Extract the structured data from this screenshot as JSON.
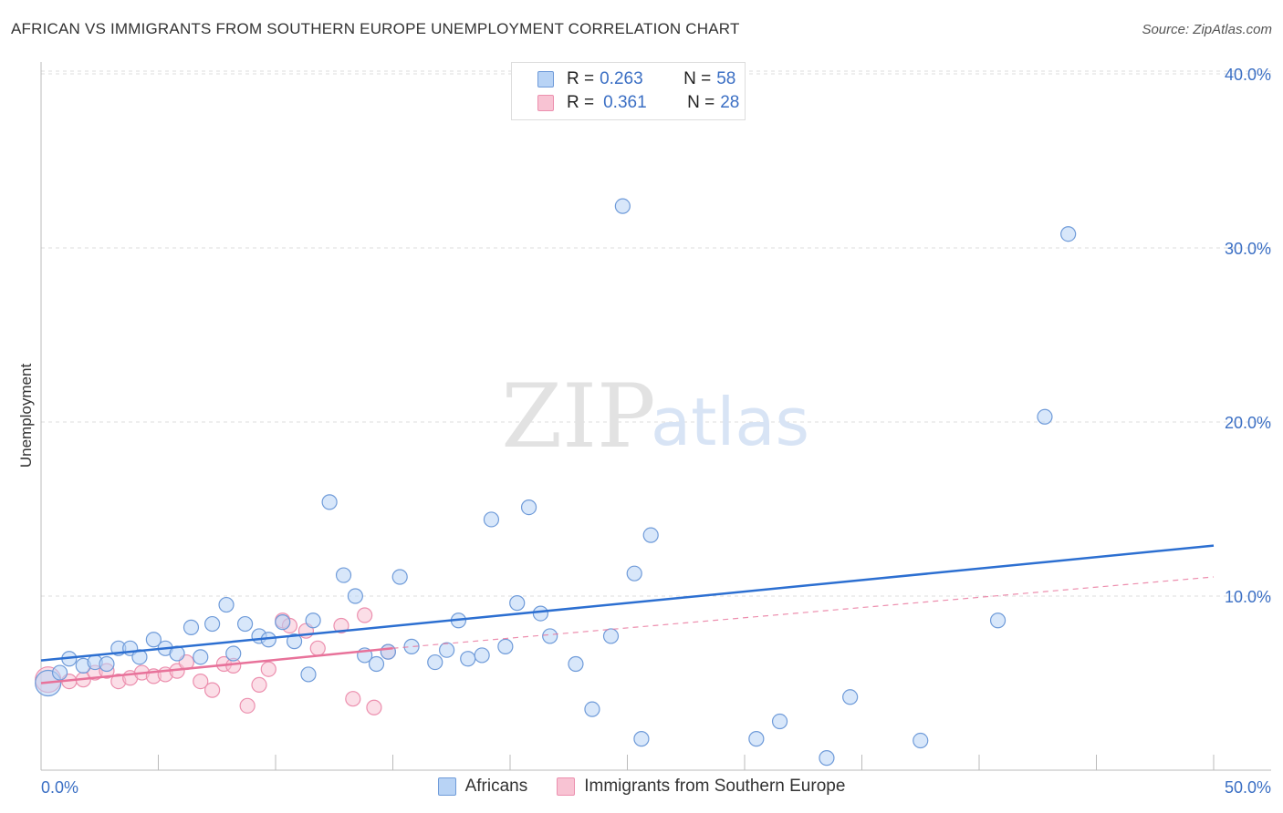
{
  "title": "AFRICAN VS IMMIGRANTS FROM SOUTHERN EUROPE UNEMPLOYMENT CORRELATION CHART",
  "source": "Source: ZipAtlas.com",
  "colors": {
    "blue_fill": "#b8d3f5",
    "blue_stroke": "#6f9bd9",
    "blue_line": "#2c6fd1",
    "pink_fill": "#f8c3d3",
    "pink_stroke": "#ec8fae",
    "pink_line": "#e8729a",
    "grid": "#dddddd",
    "tick_label": "#3b6fc4"
  },
  "legend_top": [
    {
      "series": "africans",
      "r_label": "R =",
      "r_value": "0.263",
      "n_label": "N =",
      "n_value": "58"
    },
    {
      "series": "immigrants",
      "r_label": "R =",
      "r_value": "0.361",
      "n_label": "N =",
      "n_value": "28"
    }
  ],
  "watermark": {
    "zip": "ZIP",
    "atlas": "atlas"
  },
  "chart_data": {
    "type": "scatter",
    "title": "AFRICAN VS IMMIGRANTS FROM SOUTHERN EUROPE UNEMPLOYMENT CORRELATION CHART",
    "xlabel": "",
    "ylabel": "Unemployment",
    "xlim": [
      0,
      50
    ],
    "ylim": [
      0,
      40
    ],
    "x_tick_labels": [
      "0.0%",
      "50.0%"
    ],
    "y_ticks": [
      10,
      20,
      30,
      40
    ],
    "y_tick_labels": [
      "10.0%",
      "20.0%",
      "30.0%",
      "40.0%"
    ],
    "grid": true,
    "legend_position": "bottom",
    "series": [
      {
        "name": "Africans",
        "color": "#b8d3f5",
        "r": 0.263,
        "n": 58,
        "trendline": {
          "x": [
            0,
            50
          ],
          "y": [
            6.3,
            12.9
          ],
          "style": "solid"
        },
        "points": [
          [
            0.3,
            5.0
          ],
          [
            0.8,
            5.6
          ],
          [
            1.2,
            6.4
          ],
          [
            1.8,
            6.0
          ],
          [
            2.3,
            6.2
          ],
          [
            2.8,
            6.1
          ],
          [
            3.3,
            7.0
          ],
          [
            3.8,
            7.0
          ],
          [
            4.2,
            6.5
          ],
          [
            4.8,
            7.5
          ],
          [
            5.3,
            7.0
          ],
          [
            5.8,
            6.7
          ],
          [
            6.4,
            8.2
          ],
          [
            6.8,
            6.5
          ],
          [
            7.3,
            8.4
          ],
          [
            7.9,
            9.5
          ],
          [
            8.2,
            6.7
          ],
          [
            8.7,
            8.4
          ],
          [
            9.3,
            7.7
          ],
          [
            9.7,
            7.5
          ],
          [
            10.3,
            8.5
          ],
          [
            10.8,
            7.4
          ],
          [
            11.4,
            5.5
          ],
          [
            11.6,
            8.6
          ],
          [
            12.3,
            15.4
          ],
          [
            12.9,
            11.2
          ],
          [
            13.4,
            10.0
          ],
          [
            13.8,
            6.6
          ],
          [
            14.3,
            6.1
          ],
          [
            14.8,
            6.8
          ],
          [
            15.3,
            11.1
          ],
          [
            15.8,
            7.1
          ],
          [
            16.8,
            6.2
          ],
          [
            17.3,
            6.9
          ],
          [
            17.8,
            8.6
          ],
          [
            18.2,
            6.4
          ],
          [
            18.8,
            6.6
          ],
          [
            19.2,
            14.4
          ],
          [
            19.8,
            7.1
          ],
          [
            20.3,
            9.6
          ],
          [
            20.8,
            15.1
          ],
          [
            21.3,
            9.0
          ],
          [
            21.7,
            7.7
          ],
          [
            22.8,
            6.1
          ],
          [
            23.5,
            3.5
          ],
          [
            24.3,
            7.7
          ],
          [
            24.8,
            32.4
          ],
          [
            25.3,
            11.3
          ],
          [
            25.6,
            1.8
          ],
          [
            26.0,
            13.5
          ],
          [
            30.5,
            1.8
          ],
          [
            31.5,
            2.8
          ],
          [
            33.5,
            0.7
          ],
          [
            34.5,
            4.2
          ],
          [
            37.5,
            1.7
          ],
          [
            40.8,
            8.6
          ],
          [
            42.8,
            20.3
          ],
          [
            43.8,
            30.8
          ]
        ]
      },
      {
        "name": "Immigrants from Southern Europe",
        "color": "#f8c3d3",
        "r": 0.361,
        "n": 28,
        "trendline": {
          "x": [
            0,
            15
          ],
          "y": [
            5.0,
            7.0
          ],
          "style": "solid",
          "extended": {
            "x": [
              15,
              50
            ],
            "y": [
              7.0,
              11.1
            ],
            "style": "dashed"
          }
        },
        "points": [
          [
            0.3,
            5.2
          ],
          [
            1.2,
            5.1
          ],
          [
            1.8,
            5.2
          ],
          [
            2.3,
            5.6
          ],
          [
            2.8,
            5.7
          ],
          [
            3.3,
            5.1
          ],
          [
            3.8,
            5.3
          ],
          [
            4.3,
            5.6
          ],
          [
            4.8,
            5.4
          ],
          [
            5.3,
            5.5
          ],
          [
            5.8,
            5.7
          ],
          [
            6.2,
            6.2
          ],
          [
            6.8,
            5.1
          ],
          [
            7.3,
            4.6
          ],
          [
            7.8,
            6.1
          ],
          [
            8.2,
            6.0
          ],
          [
            8.8,
            3.7
          ],
          [
            9.3,
            4.9
          ],
          [
            9.7,
            5.8
          ],
          [
            10.3,
            8.6
          ],
          [
            10.6,
            8.3
          ],
          [
            11.3,
            8.0
          ],
          [
            11.8,
            7.0
          ],
          [
            12.8,
            8.3
          ],
          [
            13.3,
            4.1
          ],
          [
            13.8,
            8.9
          ],
          [
            14.2,
            3.6
          ],
          [
            14.8,
            6.8
          ]
        ]
      }
    ]
  }
}
